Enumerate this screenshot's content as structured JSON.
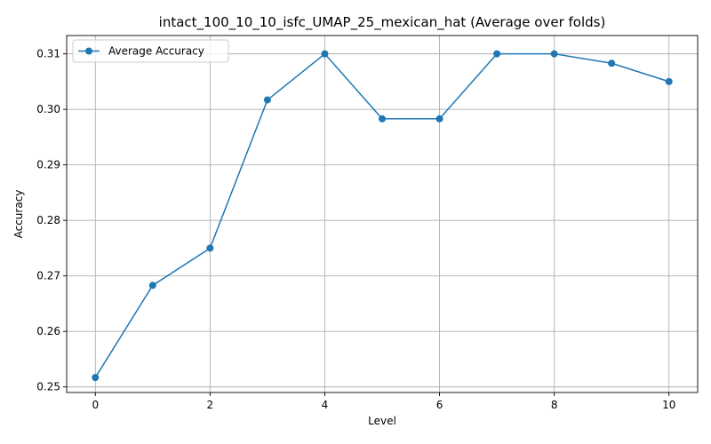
{
  "chart_data": {
    "type": "line",
    "title": "intact_100_10_10_isfc_UMAP_25_mexican_hat (Average over folds)",
    "xlabel": "Level",
    "ylabel": "Accuracy",
    "xlim": [
      -0.5,
      10.5
    ],
    "ylim": [
      0.249,
      0.3133
    ],
    "xticks": [
      0,
      2,
      4,
      6,
      8,
      10
    ],
    "xtick_labels": [
      "0",
      "2",
      "4",
      "6",
      "8",
      "10"
    ],
    "yticks": [
      0.25,
      0.26,
      0.27,
      0.28,
      0.29,
      0.3,
      0.31
    ],
    "ytick_labels": [
      "0.25",
      "0.26",
      "0.27",
      "0.28",
      "0.29",
      "0.30",
      "0.31"
    ],
    "grid": true,
    "legend_position": "top-left",
    "series": [
      {
        "name": "Average Accuracy",
        "color": "#1f77b4",
        "marker": "circle",
        "x": [
          0,
          1,
          2,
          3,
          4,
          5,
          6,
          7,
          8,
          9,
          10
        ],
        "y": [
          0.2517,
          0.2683,
          0.275,
          0.3017,
          0.31,
          0.2983,
          0.2983,
          0.31,
          0.31,
          0.3083,
          0.305
        ]
      }
    ]
  }
}
